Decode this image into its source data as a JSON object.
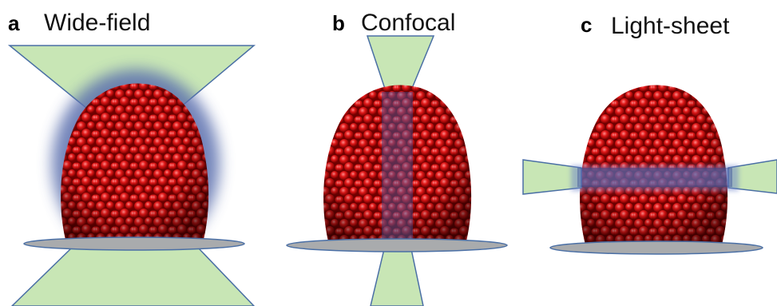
{
  "panels": [
    {
      "letter": "a",
      "title": "Wide-field"
    },
    {
      "letter": "b",
      "title": "Confocal"
    },
    {
      "letter": "c",
      "title": "Light-sheet"
    }
  ]
}
